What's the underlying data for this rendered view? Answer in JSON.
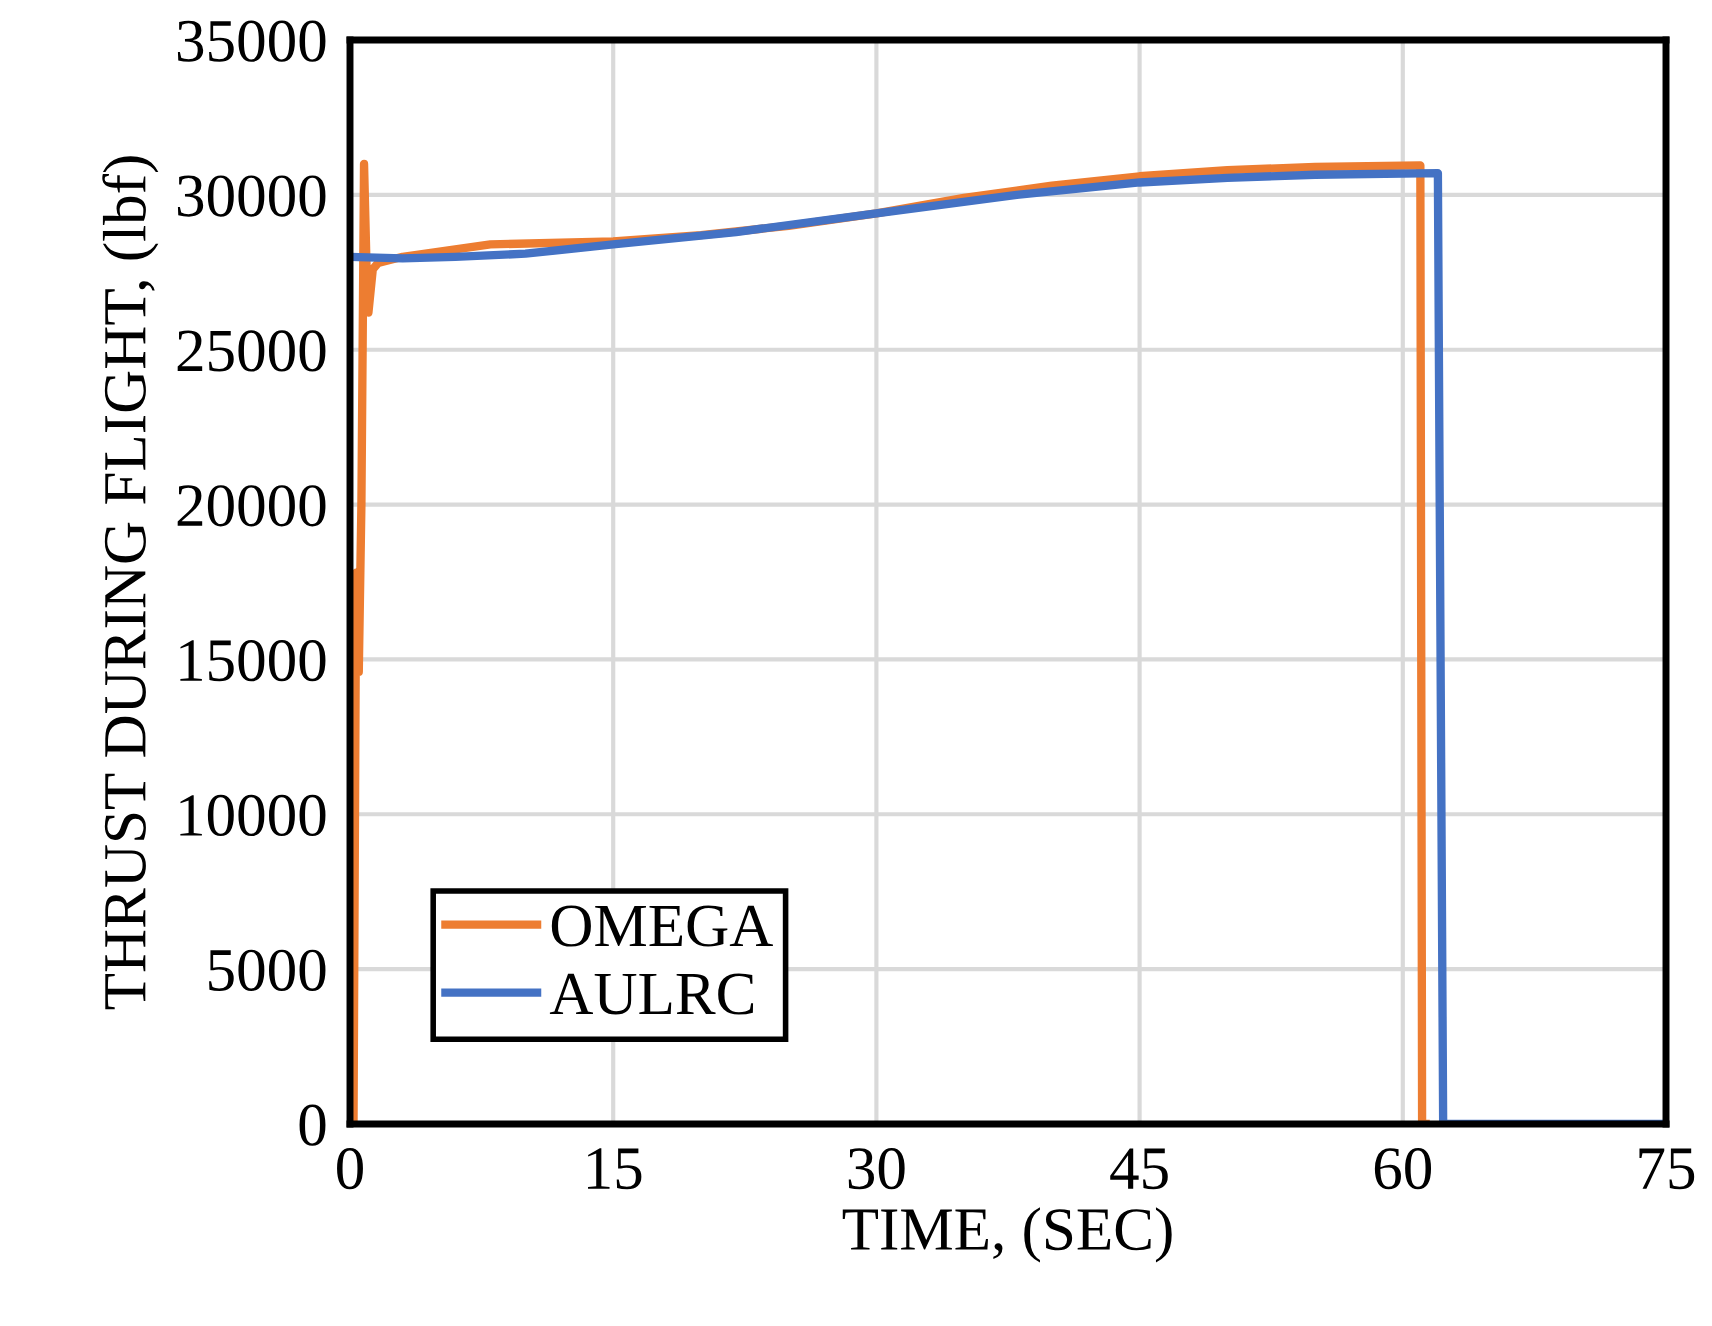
{
  "chart_data": {
    "type": "line",
    "xlabel": "TIME, (SEC)",
    "ylabel": "THRUST DURING FLIGHT, (lbf)",
    "xlim": [
      0,
      75
    ],
    "ylim": [
      0,
      35000
    ],
    "xticks": [
      0,
      15,
      30,
      45,
      60,
      75
    ],
    "yticks": [
      0,
      5000,
      10000,
      15000,
      20000,
      25000,
      30000,
      35000
    ],
    "grid": true,
    "legend": "bottom left",
    "marker": "none",
    "line_style": "solid",
    "series": [
      {
        "name": "OMEGA",
        "color": "#ed7d31",
        "x": [
          0,
          0.2,
          0.35,
          0.5,
          0.65,
          0.8,
          0.95,
          1.05,
          1.3,
          1.6,
          3,
          8,
          15,
          20,
          25,
          30,
          35,
          40,
          45,
          50,
          55,
          61,
          61.1,
          61.3
        ],
        "values": [
          0,
          0,
          17800,
          14600,
          20000,
          31000,
          27500,
          26200,
          27600,
          27800,
          28000,
          28400,
          28500,
          28700,
          29000,
          29400,
          29900,
          30300,
          30600,
          30800,
          30900,
          30950,
          0,
          0
        ]
      },
      {
        "name": "AULRC",
        "color": "#4472c4",
        "x": [
          0,
          3,
          6,
          10,
          15,
          22,
          30,
          38,
          45,
          50,
          55,
          62,
          62.3,
          75
        ],
        "values": [
          28000,
          27950,
          28000,
          28100,
          28400,
          28800,
          29400,
          30000,
          30400,
          30550,
          30650,
          30700,
          0,
          0
        ]
      }
    ]
  }
}
